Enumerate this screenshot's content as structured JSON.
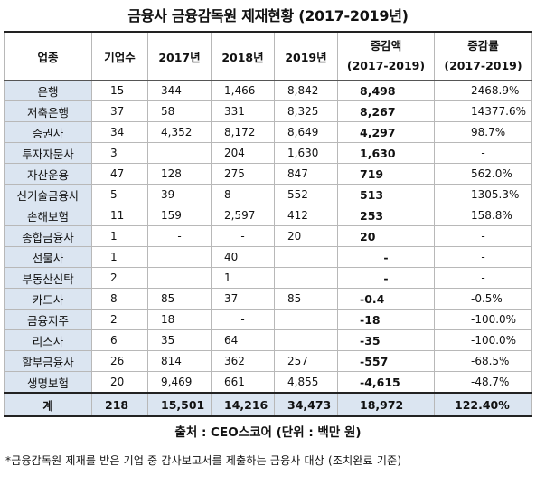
{
  "title": "금융사 금융감독원 제재현황 (2017-2019년)",
  "headers": {
    "industry": "업종",
    "companies": "기업수",
    "y2017": "2017년",
    "y2018": "2018년",
    "y2019": "2019년",
    "change_l1": "증감액",
    "change_l2": "(2017-2019)",
    "rate_l1": "증감률",
    "rate_l2": "(2017-2019)"
  },
  "rows": [
    {
      "industry": "은행",
      "companies": "15",
      "y2017": "344",
      "y2018": "1,466",
      "y2019": "8,842",
      "change": "8,498",
      "rate": "2468.9%"
    },
    {
      "industry": "저축은행",
      "companies": "37",
      "y2017": "58",
      "y2018": "331",
      "y2019": "8,325",
      "change": "8,267",
      "rate": "14377.6%"
    },
    {
      "industry": "증권사",
      "companies": "34",
      "y2017": "4,352",
      "y2018": "8,172",
      "y2019": "8,649",
      "change": "4,297",
      "rate": "98.7%"
    },
    {
      "industry": "투자자문사",
      "companies": "3",
      "y2017": "",
      "y2018": "204",
      "y2019": "1,630",
      "change": "1,630",
      "rate": "-"
    },
    {
      "industry": "자산운용",
      "companies": "47",
      "y2017": "128",
      "y2018": "275",
      "y2019": "847",
      "change": "719",
      "rate": "562.0%"
    },
    {
      "industry": "신기술금융사",
      "companies": "5",
      "y2017": "39",
      "y2018": "8",
      "y2019": "552",
      "change": "513",
      "rate": "1305.3%"
    },
    {
      "industry": "손해보험",
      "companies": "11",
      "y2017": "159",
      "y2018": "2,597",
      "y2019": "412",
      "change": "253",
      "rate": "158.8%"
    },
    {
      "industry": "종합금융사",
      "companies": "1",
      "y2017": "-",
      "y2018": "-",
      "y2019": "20",
      "change": "20",
      "rate": "-"
    },
    {
      "industry": "선물사",
      "companies": "1",
      "y2017": "",
      "y2018": "40",
      "y2019": "",
      "change": "-",
      "rate": "-"
    },
    {
      "industry": "부동산신탁",
      "companies": "2",
      "y2017": "",
      "y2018": "1",
      "y2019": "",
      "change": "-",
      "rate": "-"
    },
    {
      "industry": "카드사",
      "companies": "8",
      "y2017": "85",
      "y2018": "37",
      "y2019": "85",
      "change": "-0.4",
      "rate": "-0.5%"
    },
    {
      "industry": "금융지주",
      "companies": "2",
      "y2017": "18",
      "y2018": "-",
      "y2019": "",
      "change": "-18",
      "rate": "-100.0%"
    },
    {
      "industry": "리스사",
      "companies": "6",
      "y2017": "35",
      "y2018": "64",
      "y2019": "",
      "change": "-35",
      "rate": "-100.0%"
    },
    {
      "industry": "할부금융사",
      "companies": "26",
      "y2017": "814",
      "y2018": "362",
      "y2019": "257",
      "change": "-557",
      "rate": "-68.5%"
    },
    {
      "industry": "생명보험",
      "companies": "20",
      "y2017": "9,469",
      "y2018": "661",
      "y2019": "4,855",
      "change": "-4,615",
      "rate": "-48.7%"
    }
  ],
  "total": {
    "industry": "계",
    "companies": "218",
    "y2017": "15,501",
    "y2018": "14,216",
    "y2019": "34,473",
    "change": "18,972",
    "rate": "122.40%"
  },
  "source": "출처 : CEO스코어 (단위 : 백만 원)",
  "note": "*금융감독원 제재를 받은 기업 중 감사보고서를 제출하는 금융사 대상 (조치완료 기준)"
}
